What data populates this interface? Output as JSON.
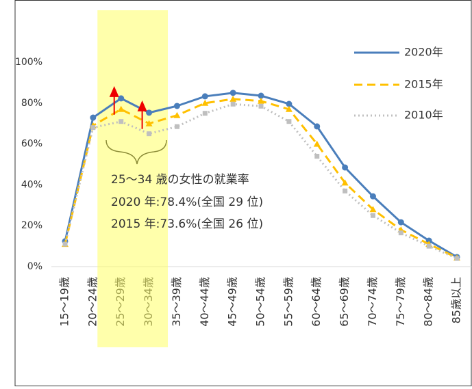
{
  "chart_data": {
    "type": "line",
    "categories": [
      "15～19歳",
      "20～24歳",
      "25～29歳",
      "30～34歳",
      "35～39歳",
      "40～44歳",
      "45～49歳",
      "50～54歳",
      "55～59歳",
      "60～64歳",
      "65～69歳",
      "70～74歳",
      "75～79歳",
      "80～84歳",
      "85歳以上"
    ],
    "series": [
      {
        "name": "2020年",
        "color": "#4a7ebb",
        "style": "solid",
        "marker": "circle",
        "values": [
          12.4,
          72.9,
          82.3,
          75.3,
          78.6,
          83.3,
          85.0,
          83.6,
          79.6,
          68.6,
          48.5,
          34.4,
          21.7,
          12.7,
          4.7
        ]
      },
      {
        "name": "2015年",
        "color": "#ffc000",
        "style": "dashed",
        "marker": "triangle",
        "values": [
          11,
          69,
          77,
          70,
          74,
          80,
          82,
          81,
          77,
          60,
          41,
          28,
          18,
          11,
          4.3
        ]
      },
      {
        "name": "2010年",
        "color": "#bfbfbf",
        "style": "dotted",
        "marker": "square",
        "values": [
          11,
          68,
          71,
          65,
          68.5,
          75,
          79.5,
          78.5,
          71,
          54,
          37,
          25,
          16.5,
          10,
          4
        ]
      }
    ],
    "ylim": [
      0,
      120
    ],
    "yticks": [
      {
        "value": 0,
        "label": "0%"
      },
      {
        "value": 20,
        "label": "20%"
      },
      {
        "value": 40,
        "label": "40%"
      },
      {
        "value": 60,
        "label": "60%"
      },
      {
        "value": 80,
        "label": "80%"
      },
      {
        "value": 100,
        "label": "100%"
      }
    ],
    "grid": false,
    "legend": "top-right",
    "highlight_categories": [
      2,
      3
    ],
    "annotations": [
      "25～34 歳の女性の就業率",
      "2020 年:78.4%(全国 29 位)",
      "2015 年:73.6%(全国 26 位)"
    ]
  }
}
